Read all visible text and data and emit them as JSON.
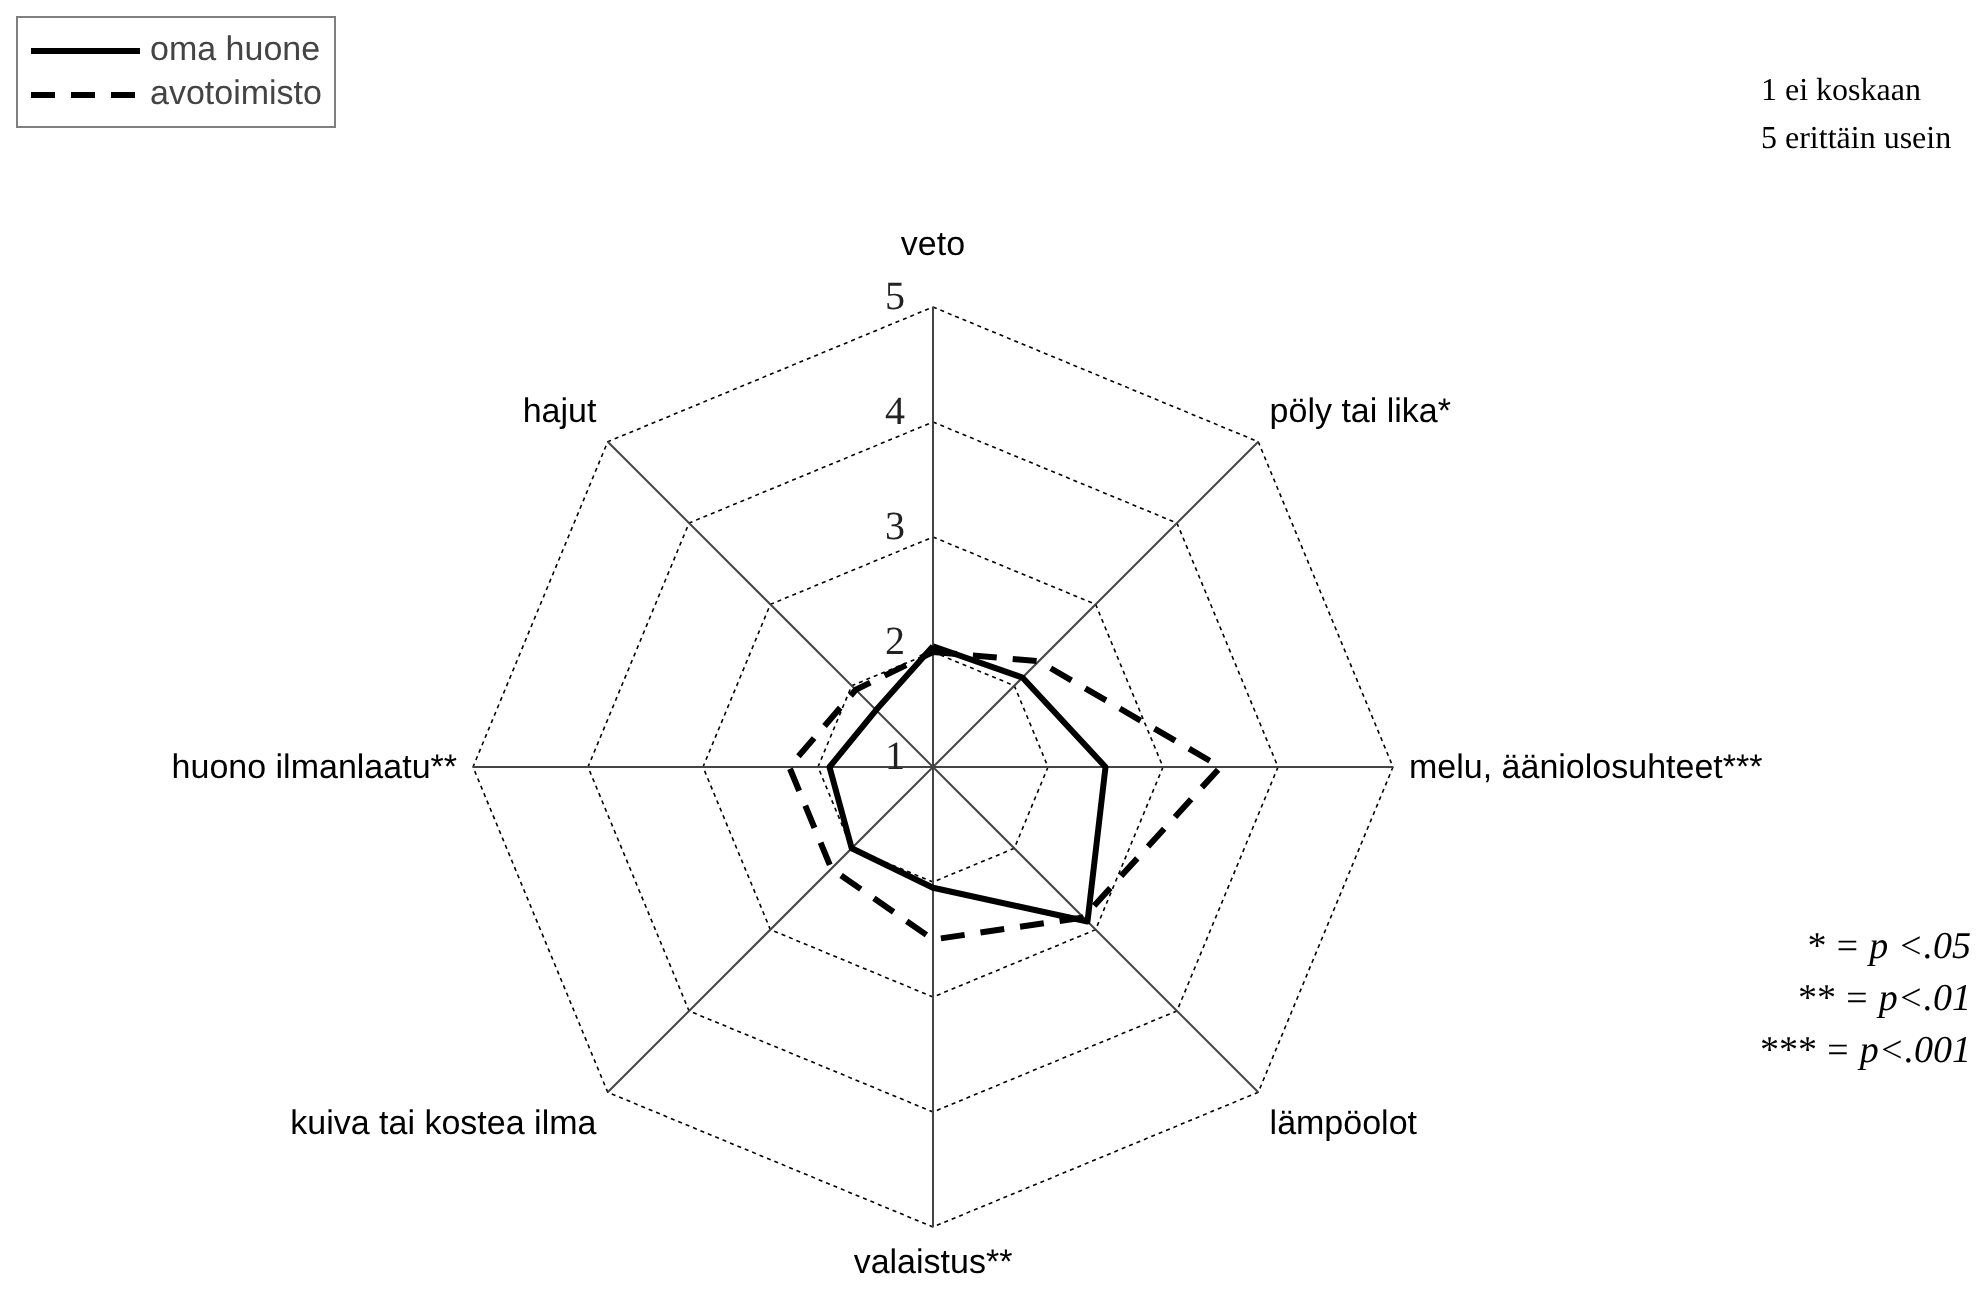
{
  "chart_data": {
    "type": "radar",
    "categories": [
      "veto",
      "pöly tai lika*",
      "melu, ääniolosuhteet***",
      "lämpöolot",
      "valaistus**",
      "kuiva tai kostea ilma",
      "huono ilmanlaatu**",
      "hajut"
    ],
    "series": [
      {
        "name": "oma huone",
        "color": "#000000",
        "line_style": "solid",
        "values": [
          2.05,
          2.1,
          2.5,
          2.9,
          2.05,
          2.0,
          1.9,
          1.7
        ]
      },
      {
        "name": "avotoimisto",
        "color": "#000000",
        "line_style": "dashed",
        "values": [
          2.0,
          2.3,
          3.5,
          2.85,
          2.5,
          2.25,
          2.25,
          1.95
        ]
      }
    ],
    "ylim": [
      1,
      5
    ],
    "yticks": [
      1,
      2,
      3,
      4,
      5
    ],
    "grid": true,
    "legend": "top left",
    "marker": "none",
    "annotations": [
      "1 ei koskaan",
      "5 erittäin usein",
      "* = p <.05",
      "** = p<.01",
      "*** = p<.001"
    ]
  }
}
